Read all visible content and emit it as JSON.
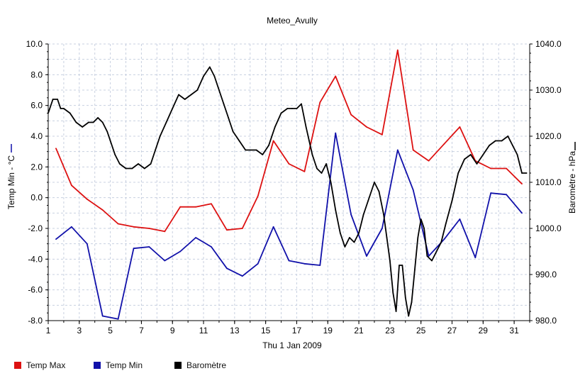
{
  "chart_data": {
    "type": "line",
    "title": "Meteo_Avully",
    "xlabel": "Thu 1 Jan 2009",
    "ylabel_left": "Temp Min - °C",
    "ylabel_right": "Baromètre - hPa",
    "xlim": [
      1,
      32
    ],
    "ylim_left": [
      -8,
      10
    ],
    "ylim_right": [
      980,
      1040
    ],
    "x_ticks": [
      1,
      3,
      5,
      7,
      9,
      11,
      13,
      15,
      17,
      19,
      21,
      23,
      25,
      27,
      29,
      31
    ],
    "y_left_ticks": [
      "10.0",
      "8.0",
      "6.0",
      "4.0",
      "2.0",
      "0.0",
      "-2.0",
      "-4.0",
      "-6.0",
      "-8.0"
    ],
    "y_right_ticks": [
      "1040.0",
      "1030.0",
      "1020.0",
      "1010.0",
      "1000.0",
      "990.0",
      "980.0"
    ],
    "grid": true,
    "legend_position": "bottom-left",
    "series": [
      {
        "name": "Temp Max",
        "color": "#dd1111",
        "axis": "left",
        "x": [
          1.5,
          2.5,
          3.5,
          4.5,
          5.5,
          6.5,
          7.5,
          8.5,
          9.5,
          10.5,
          11.5,
          12.5,
          13.5,
          14.5,
          15.5,
          16.5,
          17.5,
          18.5,
          19.5,
          20.5,
          21.5,
          22.5,
          23.5,
          24.5,
          25.5,
          26.5,
          27.5,
          28.5,
          29.5,
          30.5,
          31.5
        ],
        "values": [
          3.2,
          0.8,
          -0.1,
          -0.8,
          -1.7,
          -1.9,
          -2.0,
          -2.2,
          -0.6,
          -0.6,
          -0.4,
          -2.1,
          -2.0,
          0.1,
          3.7,
          2.2,
          1.7,
          6.2,
          7.9,
          5.4,
          4.6,
          4.1,
          9.6,
          3.1,
          2.4,
          3.5,
          4.6,
          2.4,
          1.9,
          1.9,
          0.9
        ]
      },
      {
        "name": "Temp Min",
        "color": "#1111aa",
        "axis": "left",
        "x": [
          1.5,
          2.5,
          3.5,
          4.5,
          5.5,
          6.5,
          7.5,
          8.5,
          9.5,
          10.5,
          11.5,
          12.5,
          13.5,
          14.5,
          15.5,
          16.5,
          17.5,
          18.5,
          19.5,
          20.5,
          21.5,
          22.5,
          23.5,
          24.5,
          25.5,
          26.5,
          27.5,
          28.5,
          29.5,
          30.5,
          31.5
        ],
        "values": [
          -2.7,
          -1.9,
          -3.0,
          -7.7,
          -7.9,
          -3.3,
          -3.2,
          -4.1,
          -3.5,
          -2.6,
          -3.2,
          -4.6,
          -5.1,
          -4.3,
          -1.9,
          -4.1,
          -4.3,
          -4.4,
          4.2,
          -1.1,
          -3.8,
          -2.0,
          3.1,
          0.5,
          -3.8,
          -2.7,
          -1.4,
          -3.9,
          0.3,
          0.2,
          -1.0
        ]
      },
      {
        "name": "Baromètre",
        "color": "#000000",
        "axis": "right",
        "x": [
          1.0,
          1.3,
          1.6,
          1.8,
          2.0,
          2.4,
          2.8,
          3.2,
          3.6,
          3.9,
          4.2,
          4.5,
          4.8,
          5.0,
          5.3,
          5.6,
          6.0,
          6.4,
          6.8,
          7.2,
          7.6,
          7.9,
          8.2,
          8.6,
          9.0,
          9.4,
          9.8,
          10.2,
          10.6,
          11.0,
          11.4,
          11.7,
          12.0,
          12.3,
          12.6,
          12.9,
          13.3,
          13.7,
          14.0,
          14.4,
          14.8,
          15.2,
          15.6,
          16.0,
          16.4,
          16.7,
          17.0,
          17.3,
          17.6,
          17.8,
          18.0,
          18.3,
          18.6,
          18.9,
          19.2,
          19.5,
          19.8,
          20.1,
          20.4,
          20.7,
          21.0,
          21.3,
          21.6,
          22.0,
          22.3,
          22.6,
          22.8,
          23.0,
          23.2,
          23.4,
          23.6,
          23.8,
          24.0,
          24.2,
          24.4,
          24.6,
          24.8,
          25.0,
          25.2,
          25.4,
          25.7,
          26.0,
          26.3,
          26.6,
          27.0,
          27.4,
          27.8,
          28.2,
          28.6,
          29.0,
          29.4,
          29.8,
          30.2,
          30.6,
          30.9,
          31.2,
          31.5,
          31.8
        ],
        "values": [
          1025,
          1028,
          1028,
          1026,
          1026,
          1025,
          1023,
          1022,
          1023,
          1023,
          1024,
          1023,
          1021,
          1019,
          1016,
          1014,
          1013,
          1013,
          1014,
          1013,
          1014,
          1017,
          1020,
          1023,
          1026,
          1029,
          1028,
          1029,
          1030,
          1033,
          1035,
          1033,
          1030,
          1027,
          1024,
          1021,
          1019,
          1017,
          1017,
          1017,
          1016,
          1018,
          1022,
          1025,
          1026,
          1026,
          1026,
          1027,
          1022,
          1019,
          1016,
          1013,
          1012,
          1014,
          1010,
          1004,
          999,
          996,
          998,
          997,
          999,
          1003,
          1006,
          1010,
          1008,
          1003,
          998,
          993,
          986,
          982,
          992,
          992,
          985,
          981,
          984,
          991,
          998,
          1002,
          1000,
          994,
          993,
          995,
          997,
          1001,
          1006,
          1012,
          1015,
          1016,
          1014,
          1016,
          1018,
          1019,
          1019,
          1020,
          1018,
          1016,
          1012,
          1012
        ]
      }
    ]
  }
}
